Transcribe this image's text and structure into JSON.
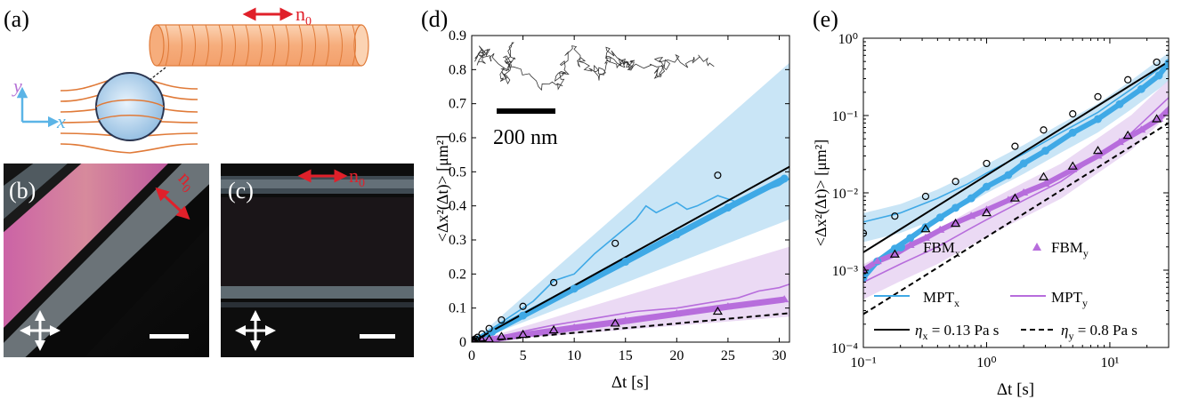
{
  "panels": {
    "a": {
      "label": "(a)",
      "director_label": "n",
      "director_sub": "0",
      "axis_y": "y",
      "axis_x": "x",
      "colors": {
        "fiber": "#f7b98a",
        "fiber_stroke": "#e07a38",
        "field_lines": "#e07a38",
        "sphere": "#bcd7ee",
        "arrow": "#e0202a",
        "axes": "#5bb4e6",
        "axis_y_text": "#b673d6"
      }
    },
    "b": {
      "label": "(b)",
      "director_label": "n",
      "director_sub": "0"
    },
    "c": {
      "label": "(c)",
      "director_label": "n",
      "director_sub": "0"
    },
    "d": {
      "label": "(d)",
      "scale_bar_label": "200 nm",
      "xlabel": "Δt [s]",
      "ylabel": "<Δx²(Δt)> [μm²]"
    },
    "e": {
      "label": "(e)",
      "xlabel": "Δt [s]",
      "ylabel": "<Δx²(Δt)> [μm²]",
      "legend": {
        "fbm_x": {
          "base": "FBM",
          "sub": "x"
        },
        "fbm_y": {
          "base": "FBM",
          "sub": "y"
        },
        "mpt_x": {
          "base": "MPT",
          "sub": "x"
        },
        "mpt_y": {
          "base": "MPT",
          "sub": "y"
        },
        "eta_x": {
          "base": "η",
          "sub": "x",
          "rest": " = 0.13 Pa s"
        },
        "eta_y": {
          "base": "η",
          "sub": "y",
          "rest": " = 0.8 Pa s"
        }
      }
    }
  },
  "chart_data": [
    {
      "panel": "d",
      "type": "scatter",
      "xlim": [
        0,
        31
      ],
      "ylim": [
        0,
        0.9
      ],
      "xticks": [
        0,
        5,
        10,
        15,
        20,
        25,
        30
      ],
      "yticks": [
        0,
        0.1,
        0.2,
        0.3,
        0.4,
        0.5,
        0.6,
        0.7,
        0.8,
        0.9
      ],
      "xlabel": "Δt [s]",
      "ylabel": "<Δx²(Δt)> [μm²]",
      "colors": {
        "x": "#3fa9e6",
        "x_band": "#bfe1f5",
        "y": "#b76ddc",
        "y_band": "#e7d3f2"
      },
      "series": [
        {
          "name": "FBMx",
          "style": "filled-circles",
          "x": [
            0.3,
            2,
            5,
            10,
            15,
            20,
            25,
            30.5
          ],
          "y": [
            0.005,
            0.03,
            0.078,
            0.157,
            0.236,
            0.316,
            0.395,
            0.48
          ]
        },
        {
          "name": "FBMy",
          "style": "filled-triangles",
          "x": [
            0.3,
            2,
            5,
            10,
            15,
            20,
            25,
            30.5
          ],
          "y": [
            0.001,
            0.008,
            0.021,
            0.042,
            0.062,
            0.083,
            0.104,
            0.125
          ]
        },
        {
          "name": "MPTx",
          "style": "line",
          "x": [
            0.5,
            2,
            4,
            6,
            8,
            10,
            12,
            14,
            16,
            17,
            18,
            20,
            21,
            22,
            24,
            26,
            28,
            30,
            31
          ],
          "y": [
            0.01,
            0.04,
            0.08,
            0.12,
            0.18,
            0.2,
            0.26,
            0.31,
            0.36,
            0.4,
            0.38,
            0.41,
            0.39,
            0.4,
            0.43,
            0.41,
            0.44,
            0.46,
            0.48
          ]
        },
        {
          "name": "MPTy",
          "style": "line",
          "x": [
            0.5,
            2,
            4,
            6,
            8,
            10,
            12,
            14,
            16,
            18,
            20,
            22,
            24,
            26,
            28,
            30,
            31
          ],
          "y": [
            0.003,
            0.012,
            0.025,
            0.038,
            0.05,
            0.06,
            0.07,
            0.08,
            0.09,
            0.095,
            0.1,
            0.11,
            0.12,
            0.13,
            0.15,
            0.16,
            0.17
          ]
        },
        {
          "name": "eta_x",
          "style": "black-line",
          "x": [
            0,
            31
          ],
          "y": [
            0,
            0.515
          ]
        },
        {
          "name": "eta_y",
          "style": "black-dashed",
          "x": [
            0,
            31
          ],
          "y": [
            0,
            0.085
          ]
        },
        {
          "name": "open_circles",
          "style": "open-circles",
          "x": [
            0.1,
            0.18,
            0.32,
            0.56,
            1,
            1.7,
            2.9,
            5,
            8,
            14,
            24
          ],
          "y": [
            0.003,
            0.005,
            0.009,
            0.014,
            0.024,
            0.04,
            0.065,
            0.105,
            0.175,
            0.29,
            0.49
          ]
        },
        {
          "name": "open_triangles",
          "style": "open-triangles",
          "x": [
            0.1,
            0.18,
            0.32,
            0.56,
            1,
            1.7,
            2.9,
            5,
            8,
            14,
            24
          ],
          "y": [
            0.001,
            0.0016,
            0.0034,
            0.004,
            0.0055,
            0.0085,
            0.016,
            0.022,
            0.035,
            0.055,
            0.09
          ]
        }
      ],
      "bands": [
        {
          "name": "x_band",
          "x": [
            0,
            31
          ],
          "lower": [
            0,
            0.36
          ],
          "upper": [
            0,
            0.82
          ]
        },
        {
          "name": "y_band",
          "x": [
            0,
            31
          ],
          "lower": [
            0,
            0.075
          ],
          "upper": [
            0,
            0.28
          ]
        }
      ]
    },
    {
      "panel": "e",
      "type": "scatter",
      "xscale": "log",
      "yscale": "log",
      "xlim": [
        0.1,
        30
      ],
      "ylim": [
        0.0001,
        1
      ],
      "xticks": [
        0.1,
        1,
        10
      ],
      "xtick_labels": [
        "10⁻¹",
        "10⁰",
        "10¹"
      ],
      "yticks": [
        0.0001,
        0.001,
        0.01,
        0.1,
        1
      ],
      "ytick_labels": [
        "10⁻⁴",
        "10⁻³",
        "10⁻²",
        "10⁻¹",
        "10⁰"
      ],
      "xlabel": "Δt [s]",
      "ylabel": "<Δx²(Δt)> [μm²]",
      "legend_position": "bottom",
      "series": [
        {
          "name": "FBMx",
          "style": "filled-circles",
          "x": [
            0.1,
            0.13,
            0.18,
            0.24,
            0.32,
            0.42,
            0.56,
            0.75,
            1,
            1.5,
            2,
            3,
            5,
            8,
            12,
            18,
            25,
            30
          ],
          "y": [
            0.0008,
            0.0013,
            0.0019,
            0.0026,
            0.0036,
            0.0048,
            0.0064,
            0.0085,
            0.012,
            0.017,
            0.024,
            0.035,
            0.06,
            0.09,
            0.14,
            0.22,
            0.33,
            0.48
          ]
        },
        {
          "name": "FBMy",
          "style": "filled-triangles",
          "x": [
            0.1,
            0.13,
            0.18,
            0.24,
            0.32,
            0.42,
            0.56,
            0.75,
            1,
            1.5,
            2,
            3,
            5,
            8,
            12,
            18,
            25,
            30
          ],
          "y": [
            0.001,
            0.0013,
            0.0016,
            0.0021,
            0.0026,
            0.0033,
            0.0041,
            0.005,
            0.006,
            0.008,
            0.01,
            0.013,
            0.02,
            0.03,
            0.045,
            0.065,
            0.09,
            0.12
          ]
        },
        {
          "name": "MPTx",
          "style": "line",
          "x": [
            0.1,
            0.2,
            0.4,
            0.7,
            1,
            2,
            4,
            8,
            15,
            30
          ],
          "y": [
            0.0042,
            0.0055,
            0.0085,
            0.013,
            0.018,
            0.032,
            0.06,
            0.11,
            0.22,
            0.5
          ]
        },
        {
          "name": "MPTy",
          "style": "line",
          "x": [
            0.1,
            0.2,
            0.4,
            0.7,
            1,
            2,
            4,
            8,
            15,
            30
          ],
          "y": [
            0.0007,
            0.0012,
            0.002,
            0.0033,
            0.0045,
            0.008,
            0.014,
            0.03,
            0.06,
            0.17
          ]
        },
        {
          "name": "eta_x",
          "style": "black-line",
          "x": [
            0.1,
            30
          ],
          "y": [
            0.0017,
            0.5
          ]
        },
        {
          "name": "eta_y",
          "style": "black-dashed",
          "x": [
            0.1,
            30
          ],
          "y": [
            0.00027,
            0.08
          ]
        },
        {
          "name": "open_circles",
          "style": "open-circles",
          "x": [
            0.1,
            0.18,
            0.32,
            0.56,
            1,
            1.7,
            2.9,
            5,
            8,
            14,
            24
          ],
          "y": [
            0.003,
            0.005,
            0.009,
            0.014,
            0.024,
            0.04,
            0.065,
            0.105,
            0.175,
            0.29,
            0.49
          ]
        },
        {
          "name": "open_triangles",
          "style": "open-triangles",
          "x": [
            0.1,
            0.18,
            0.32,
            0.56,
            1,
            1.7,
            2.9,
            5,
            8,
            14,
            24
          ],
          "y": [
            0.001,
            0.0016,
            0.0034,
            0.004,
            0.0055,
            0.0085,
            0.016,
            0.022,
            0.035,
            0.055,
            0.09
          ]
        }
      ]
    }
  ]
}
